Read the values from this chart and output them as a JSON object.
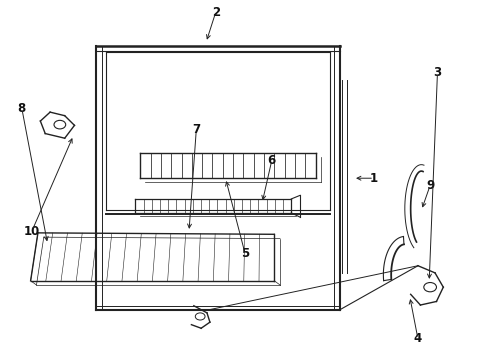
{
  "background_color": "#ffffff",
  "line_color": "#222222",
  "label_color": "#111111",
  "fig_width": 4.9,
  "fig_height": 3.6,
  "dpi": 100,
  "label_positions": {
    "2": [
      0.44,
      0.97,
      0.42,
      0.885
    ],
    "4": [
      0.855,
      0.055,
      0.838,
      0.175
    ],
    "5": [
      0.5,
      0.295,
      0.46,
      0.505
    ],
    "6": [
      0.555,
      0.555,
      0.535,
      0.435
    ],
    "7": [
      0.4,
      0.64,
      0.385,
      0.355
    ],
    "8": [
      0.042,
      0.7,
      0.095,
      0.32
    ],
    "1": [
      0.765,
      0.505,
      0.722,
      0.505
    ],
    "9": [
      0.88,
      0.485,
      0.862,
      0.415
    ],
    "10": [
      0.062,
      0.355,
      0.148,
      0.625
    ],
    "3": [
      0.895,
      0.8,
      0.878,
      0.215
    ]
  }
}
